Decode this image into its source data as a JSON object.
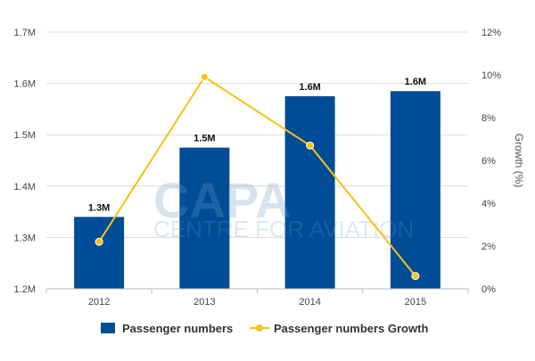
{
  "chart_data": {
    "type": "bar",
    "categories": [
      "2012",
      "2013",
      "2014",
      "2015"
    ],
    "series": [
      {
        "name": "Passenger numbers",
        "type": "bar",
        "axis": "left",
        "values": [
          1.34,
          1.475,
          1.575,
          1.585
        ],
        "labels": [
          "1.3M",
          "1.5M",
          "1.6M",
          "1.6M"
        ],
        "color": "#004c97"
      },
      {
        "name": "Passenger numbers Growth",
        "type": "line",
        "axis": "right",
        "values": [
          2.2,
          9.9,
          6.7,
          0.6
        ],
        "color": "#f5c314"
      }
    ],
    "ylim": [
      1.2,
      1.7
    ],
    "yticks": [
      "1.2M",
      "1.3M",
      "1.4M",
      "1.5M",
      "1.6M",
      "1.7M"
    ],
    "y2lim": [
      0,
      12
    ],
    "y2ticks": [
      "0%",
      "2%",
      "4%",
      "6%",
      "8%",
      "10%",
      "12%"
    ],
    "y2label": "Growth (%)",
    "grid": true,
    "legend_position": "bottom"
  },
  "watermark": {
    "text": "CAPA",
    "subtext": "CENTRE FOR AVIATION"
  }
}
